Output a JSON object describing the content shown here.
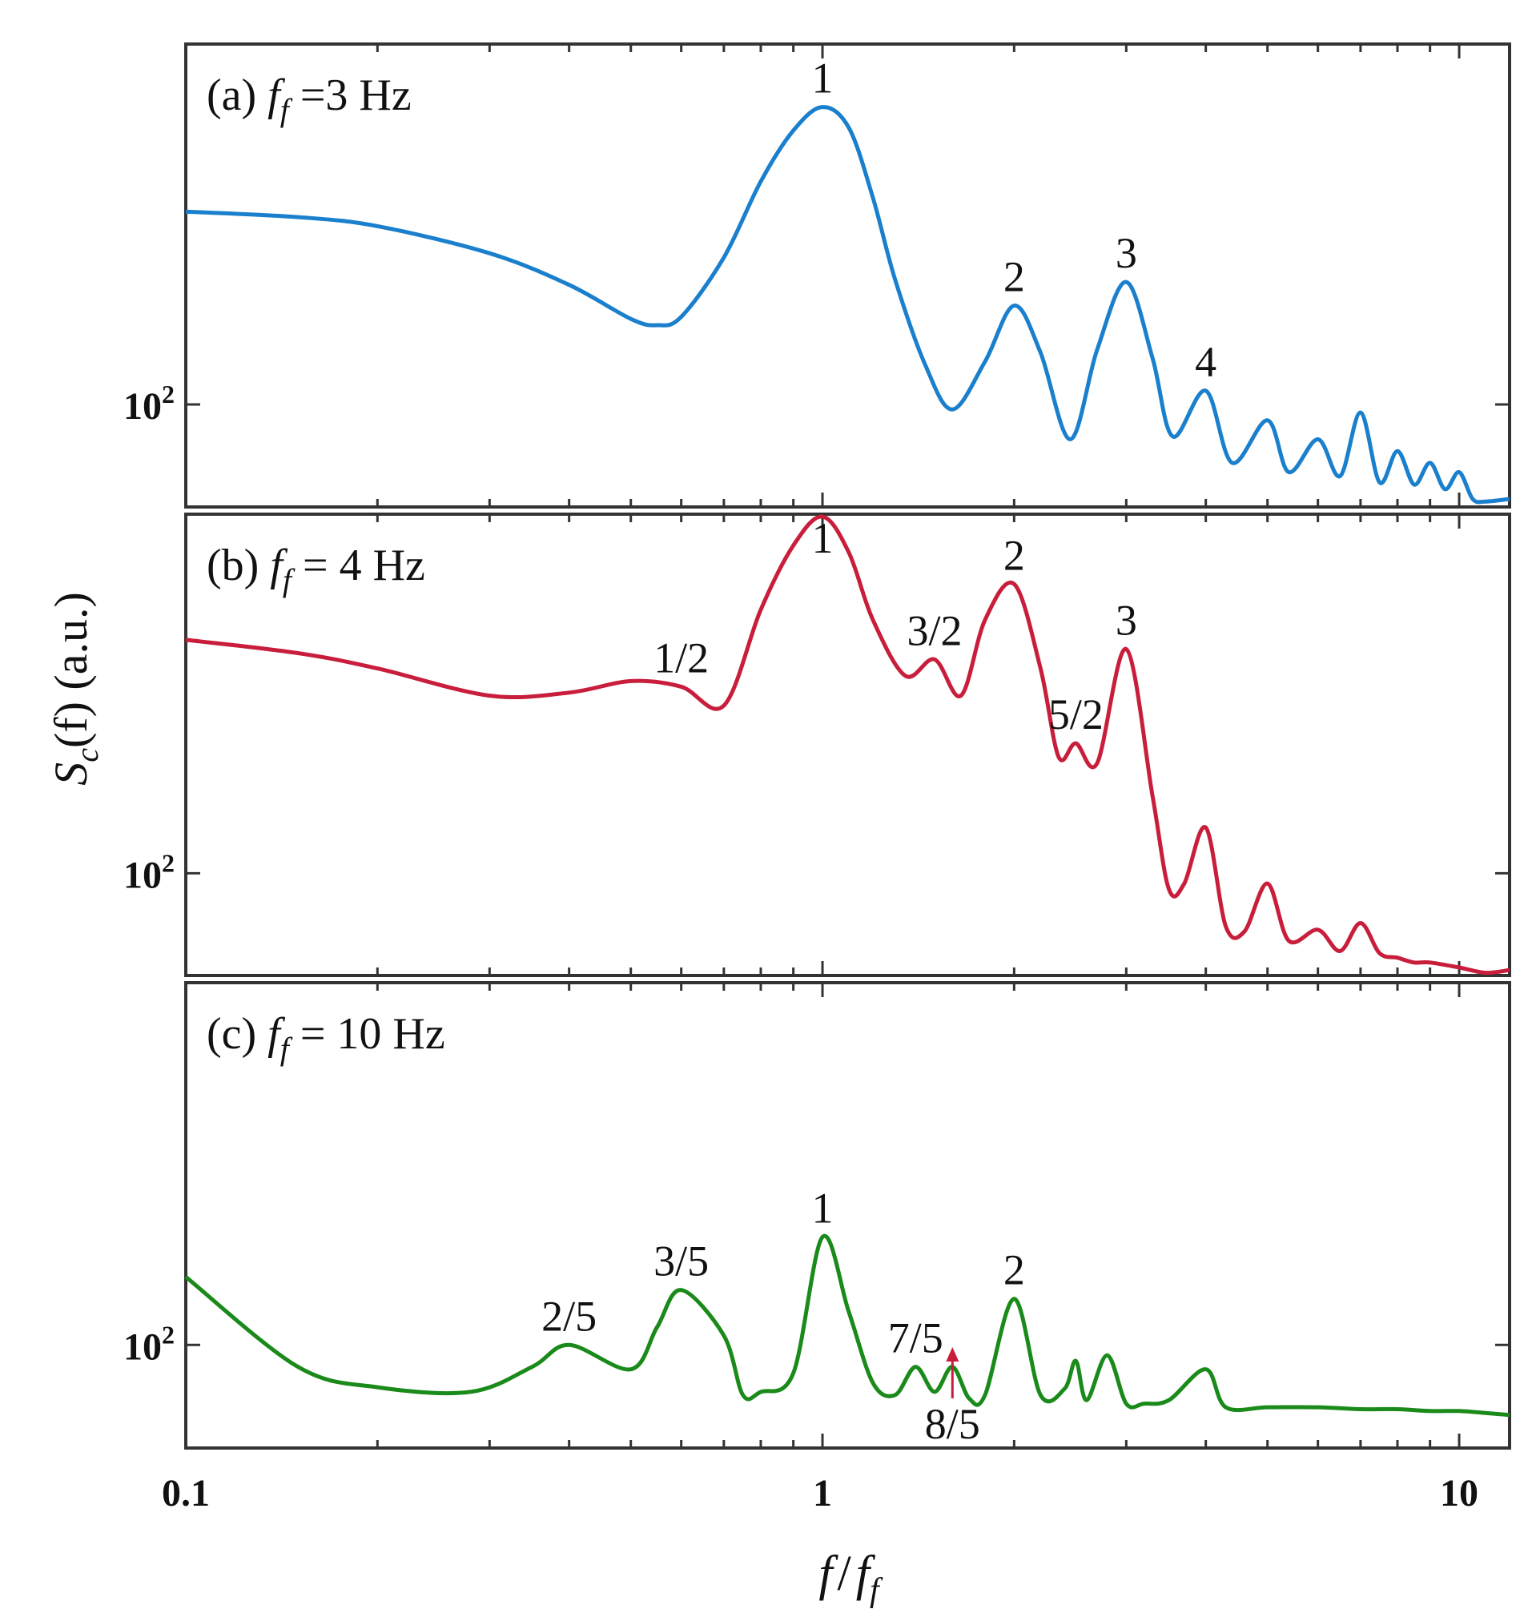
{
  "chart_data": [
    {
      "type": "line",
      "panel": "(a)",
      "label_prefix": "(a)",
      "label_value": "=3 Hz",
      "color": "#1a7fcc",
      "xscale": "log",
      "yscale": "log",
      "xlim": [
        0.1,
        12
      ],
      "ylim": [
        35,
        4000
      ],
      "yticks": [
        100
      ],
      "x": [
        0.1,
        0.15,
        0.2,
        0.3,
        0.4,
        0.5,
        0.55,
        0.6,
        0.7,
        0.8,
        0.9,
        1.0,
        1.1,
        1.2,
        1.3,
        1.45,
        1.6,
        1.8,
        2.0,
        2.2,
        2.45,
        2.7,
        3.0,
        3.3,
        3.55,
        4.0,
        4.4,
        5.0,
        5.4,
        6.0,
        6.5,
        7.0,
        7.5,
        8.0,
        8.5,
        9.0,
        9.5,
        10.0,
        10.5,
        11.0,
        12.0
      ],
      "y": [
        720,
        680,
        620,
        470,
        340,
        240,
        225,
        245,
        450,
        980,
        1650,
        2100,
        1700,
        830,
        360,
        150,
        95,
        155,
        275,
        170,
        70,
        175,
        350,
        160,
        72,
        115,
        55,
        85,
        50,
        70,
        48,
        92,
        45,
        62,
        44,
        55,
        42,
        50,
        38,
        37,
        38
      ],
      "peak_labels": [
        {
          "text": "1",
          "x": 1.0,
          "y": 2100
        },
        {
          "text": "2",
          "x": 2.0,
          "y": 275
        },
        {
          "text": "3",
          "x": 3.0,
          "y": 350
        },
        {
          "text": "4",
          "x": 4.0,
          "y": 115
        }
      ]
    },
    {
      "type": "line",
      "panel": "(b)",
      "label_prefix": "(b)",
      "label_value": "= 4 Hz",
      "color": "#c81e3c",
      "xscale": "log",
      "yscale": "log",
      "xlim": [
        0.1,
        12
      ],
      "ylim": [
        35,
        4000
      ],
      "yticks": [
        100
      ],
      "x": [
        0.1,
        0.15,
        0.2,
        0.3,
        0.4,
        0.5,
        0.6,
        0.7,
        0.8,
        0.9,
        1.0,
        1.1,
        1.2,
        1.35,
        1.5,
        1.65,
        1.8,
        2.0,
        2.2,
        2.35,
        2.5,
        2.7,
        3.0,
        3.3,
        3.5,
        3.7,
        4.0,
        4.3,
        4.6,
        5.0,
        5.4,
        6.0,
        6.5,
        7.0,
        7.5,
        8.0,
        8.5,
        9.0,
        10.0,
        11.0,
        12.0
      ],
      "y": [
        1100,
        960,
        820,
        620,
        640,
        720,
        680,
        560,
        1500,
        2900,
        3900,
        2700,
        1350,
        760,
        900,
        620,
        1350,
        1950,
        820,
        330,
        380,
        310,
        1000,
        220,
        85,
        90,
        160,
        58,
        55,
        90,
        50,
        56,
        45,
        60,
        44,
        42,
        40,
        40,
        38,
        36,
        37
      ],
      "peak_labels": [
        {
          "text": "1/2",
          "x": 0.6,
          "y": 680
        },
        {
          "text": "1",
          "x": 1.0,
          "y": 3900
        },
        {
          "text": "3/2",
          "x": 1.5,
          "y": 900
        },
        {
          "text": "2",
          "x": 2.0,
          "y": 1950
        },
        {
          "text": "5/2",
          "x": 2.5,
          "y": 380
        },
        {
          "text": "3",
          "x": 3.0,
          "y": 1000
        }
      ]
    },
    {
      "type": "line",
      "panel": "(c)",
      "label_prefix": "(c)",
      "label_value": "= 10 Hz",
      "color": "#1a8a1a",
      "xscale": "log",
      "yscale": "log",
      "xlim": [
        0.1,
        12
      ],
      "ylim": [
        35,
        4000
      ],
      "yticks": [
        100
      ],
      "x": [
        0.1,
        0.15,
        0.2,
        0.28,
        0.35,
        0.4,
        0.5,
        0.55,
        0.6,
        0.7,
        0.75,
        0.8,
        0.9,
        1.0,
        1.1,
        1.2,
        1.3,
        1.4,
        1.5,
        1.6,
        1.7,
        1.8,
        2.0,
        2.2,
        2.4,
        2.5,
        2.6,
        2.8,
        3.0,
        3.2,
        3.5,
        4.0,
        4.3,
        5.0,
        6.0,
        7.0,
        8.0,
        9.0,
        10.0,
        11.0,
        12.0
      ],
      "y": [
        200,
        80,
        65,
        62,
        80,
        100,
        78,
        120,
        175,
        110,
        60,
        62,
        75,
        300,
        140,
        68,
        60,
        80,
        62,
        80,
        58,
        60,
        160,
        60,
        64,
        85,
        57,
        90,
        55,
        55,
        57,
        78,
        53,
        53,
        53,
        52,
        52,
        51,
        51,
        50,
        49
      ],
      "peak_labels": [
        {
          "text": "2/5",
          "x": 0.4,
          "y": 100
        },
        {
          "text": "3/5",
          "x": 0.6,
          "y": 175
        },
        {
          "text": "1",
          "x": 1.0,
          "y": 300
        },
        {
          "text": "7/5",
          "x": 1.4,
          "y": 80
        },
        {
          "text": "2",
          "x": 2.0,
          "y": 160
        }
      ],
      "arrow_label": {
        "text": "8/5",
        "x": 1.6
      }
    }
  ],
  "axes": {
    "ylabel_main": "S",
    "ylabel_sub": "c",
    "ylabel_rest": "(f) (a.u.)",
    "xlabel_num": "f",
    "xlabel_den": "f",
    "xlabel_den_sub": "f",
    "xlabel_sep": "/",
    "panel_symbol": "f",
    "panel_symbol_sub": "f",
    "ytick_base": "10",
    "ytick_exp": "2",
    "xtick_labels": [
      {
        "value": 0.1,
        "text": "0.1"
      },
      {
        "value": 1,
        "text": "1"
      },
      {
        "value": 10,
        "text": "10"
      }
    ]
  },
  "annotation_color": "#c81e3c"
}
